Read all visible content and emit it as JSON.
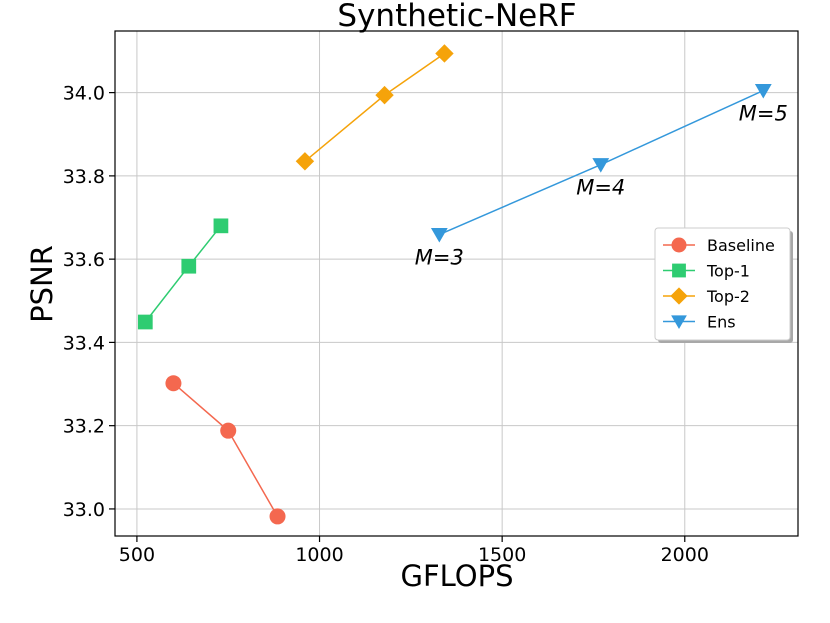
{
  "chart_data": {
    "type": "line",
    "title": "Synthetic-NeRF",
    "xlabel": "GFLOPS",
    "ylabel": "PSNR",
    "xlim": [
      440,
      2310
    ],
    "ylim": [
      32.935,
      34.148
    ],
    "xticks": [
      500,
      1000,
      1500,
      2000
    ],
    "yticks": [
      33.0,
      33.2,
      33.4,
      33.6,
      33.8,
      34.0
    ],
    "xtick_labels": [
      "500",
      "1000",
      "1500",
      "2000"
    ],
    "ytick_labels": [
      "33.0",
      "33.2",
      "33.4",
      "33.6",
      "33.8",
      "34.0"
    ],
    "grid": true,
    "legend_position": "center-right",
    "series": [
      {
        "name": "Baseline",
        "color": "#f4684f",
        "marker": "circle",
        "x": [
          600,
          750,
          885
        ],
        "y": [
          33.302,
          33.188,
          32.982
        ]
      },
      {
        "name": "Top-1",
        "color": "#2ecc71",
        "marker": "square",
        "x": [
          523,
          642,
          730
        ],
        "y": [
          33.449,
          33.583,
          33.68
        ]
      },
      {
        "name": "Top-2",
        "color": "#f5a30a",
        "marker": "diamond",
        "x": [
          960,
          1178,
          1342
        ],
        "y": [
          33.835,
          33.994,
          34.094
        ]
      },
      {
        "name": "Ens",
        "color": "#3498db",
        "marker": "triangle-down",
        "x": [
          1328,
          1770,
          2215
        ],
        "y": [
          33.659,
          33.827,
          34.005
        ]
      }
    ],
    "annotations": [
      {
        "text": "M=3",
        "x": 1328,
        "y": 33.659
      },
      {
        "text": "M=4",
        "x": 1770,
        "y": 33.827
      },
      {
        "text": "M=5",
        "x": 2215,
        "y": 34.005
      }
    ]
  }
}
